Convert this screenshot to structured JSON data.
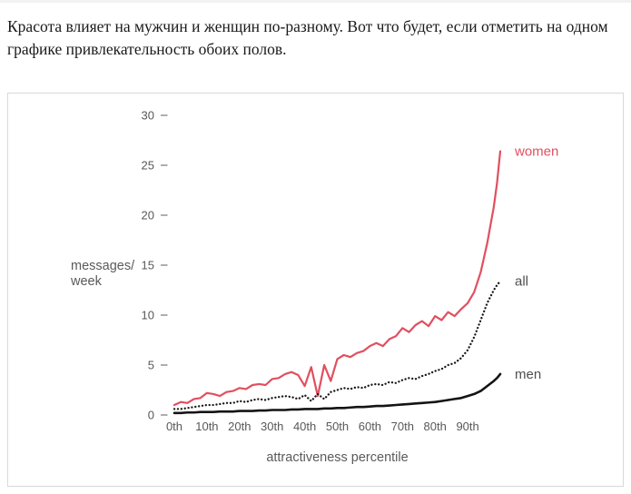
{
  "header": {
    "text": "Красота влияет на мужчин и женщин по-разному. Вот что будет, если отметить на одном\nграфике привлекательность обоих полов."
  },
  "colors": {
    "accent_red": "#e14f5f",
    "line_black": "#141414",
    "label_gray": "#4f4f4f",
    "tick_gray": "#585858",
    "card_border": "#d9d9d9"
  },
  "chart_data": {
    "type": "line",
    "title": "",
    "xlabel": "attractiveness percentile",
    "ylabel_lines": [
      "messages/",
      "week"
    ],
    "ylim": [
      0,
      30
    ],
    "xlim": [
      0,
      100
    ],
    "grid": false,
    "legend_position": "right-of-line-ends",
    "y_ticks": [
      0,
      5,
      10,
      15,
      20,
      25,
      30
    ],
    "x_ticks": [
      {
        "p": 0,
        "label": "0th"
      },
      {
        "p": 10,
        "label": "10th"
      },
      {
        "p": 20,
        "label": "20th"
      },
      {
        "p": 30,
        "label": "30th"
      },
      {
        "p": 40,
        "label": "40th"
      },
      {
        "p": 50,
        "label": "50th"
      },
      {
        "p": 60,
        "label": "60th"
      },
      {
        "p": 70,
        "label": "70th"
      },
      {
        "p": 80,
        "label": "80th"
      },
      {
        "p": 90,
        "label": "90th"
      }
    ],
    "x": [
      0,
      2,
      4,
      6,
      8,
      10,
      12,
      14,
      16,
      18,
      20,
      22,
      24,
      26,
      28,
      30,
      32,
      34,
      36,
      38,
      40,
      42,
      44,
      46,
      48,
      50,
      52,
      54,
      56,
      58,
      60,
      62,
      64,
      66,
      68,
      70,
      72,
      74,
      76,
      78,
      80,
      82,
      84,
      86,
      88,
      90,
      92,
      94,
      96,
      98,
      99,
      100
    ],
    "series": [
      {
        "name": "women",
        "style": "solid",
        "color": "#e14f5f",
        "label_color": "#e14f5f",
        "width": 2.2,
        "values": [
          1.0,
          1.3,
          1.2,
          1.6,
          1.7,
          2.2,
          2.1,
          1.9,
          2.3,
          2.4,
          2.7,
          2.6,
          3.0,
          3.1,
          3.0,
          3.6,
          3.7,
          4.1,
          4.3,
          4.0,
          2.9,
          4.8,
          1.9,
          5.0,
          3.4,
          5.6,
          6.0,
          5.8,
          6.2,
          6.4,
          6.9,
          7.2,
          6.9,
          7.6,
          7.9,
          8.7,
          8.3,
          9.0,
          9.4,
          8.9,
          9.9,
          9.5,
          10.3,
          9.9,
          10.6,
          11.2,
          12.3,
          14.3,
          17.2,
          20.8,
          23.2,
          26.4
        ]
      },
      {
        "name": "all",
        "style": "dotted",
        "color": "#1a1a1a",
        "label_color": "#4f4f4f",
        "width": 2.3,
        "values": [
          0.6,
          0.6,
          0.7,
          0.8,
          0.9,
          1.0,
          1.0,
          1.1,
          1.2,
          1.2,
          1.4,
          1.3,
          1.5,
          1.6,
          1.5,
          1.7,
          1.8,
          1.9,
          1.8,
          1.6,
          2.0,
          1.4,
          2.1,
          1.6,
          2.3,
          2.5,
          2.7,
          2.6,
          2.8,
          2.7,
          3.0,
          3.1,
          3.0,
          3.3,
          3.2,
          3.5,
          3.7,
          3.6,
          3.9,
          4.1,
          4.4,
          4.6,
          5.0,
          5.2,
          5.7,
          6.5,
          7.8,
          9.5,
          11.2,
          12.5,
          13.0,
          13.4
        ]
      },
      {
        "name": "men",
        "style": "solid",
        "color": "#141414",
        "label_color": "#4f4f4f",
        "width": 2.6,
        "values": [
          0.2,
          0.2,
          0.25,
          0.25,
          0.3,
          0.3,
          0.3,
          0.35,
          0.35,
          0.35,
          0.4,
          0.4,
          0.4,
          0.45,
          0.45,
          0.5,
          0.5,
          0.5,
          0.55,
          0.55,
          0.6,
          0.6,
          0.6,
          0.65,
          0.65,
          0.7,
          0.7,
          0.75,
          0.8,
          0.8,
          0.85,
          0.9,
          0.9,
          0.95,
          1.0,
          1.05,
          1.1,
          1.15,
          1.2,
          1.25,
          1.3,
          1.4,
          1.5,
          1.6,
          1.7,
          1.9,
          2.1,
          2.4,
          2.9,
          3.4,
          3.7,
          4.1
        ]
      }
    ]
  }
}
